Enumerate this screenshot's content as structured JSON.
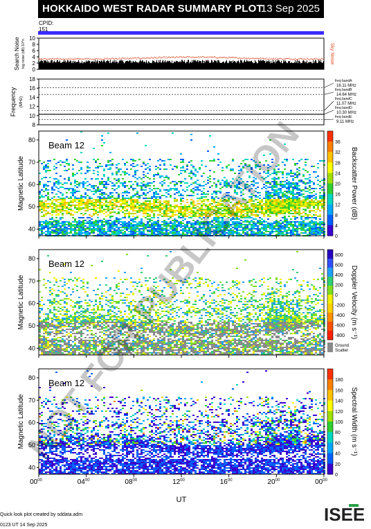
{
  "header": {
    "title": "HOKKAIDO WEST RADAR SUMMARY PLOT",
    "date": "13 Sep 2025"
  },
  "cpid": {
    "label": "CPID:",
    "value": "151"
  },
  "bar_color": "#3a2bff",
  "watermark": "NOT FOR PUBLICATION",
  "footer": {
    "line1": "Quick look plot created by sddata.adm",
    "line2": "0123 UT 14 Sep 2025"
  },
  "logo_text": "ISEE",
  "chart_data": [
    {
      "type": "line",
      "name": "noise",
      "ylabel": "Search Noise",
      "ylabel_sub": "log noise (dB) 10^n",
      "side_label": "Sky Noise",
      "ylim": [
        0,
        10
      ],
      "yticks": [
        0,
        2,
        4,
        6,
        8,
        10
      ],
      "search_noise_level": 2.5,
      "sky_noise_level": 3.3,
      "series_colors": {
        "search": "#000000",
        "sky": "#e0502a"
      }
    },
    {
      "type": "line",
      "name": "frequency",
      "ylabel": "Frequency",
      "ylabel_sub": "(MHz)",
      "ylim": [
        8,
        18
      ],
      "yticks": [
        8,
        10,
        12,
        14,
        16,
        18
      ],
      "bands": [
        {
          "name": "freq bandA",
          "mhz": 16.11,
          "label": "16.11 MHz"
        },
        {
          "name": "freq bandB",
          "mhz": 14.64,
          "label": "14.64 MHz"
        },
        {
          "name": "freq bandC",
          "mhz": 11.07,
          "label": "11.07 MHz"
        },
        {
          "name": "freq bandD",
          "mhz": 10.3,
          "label": "10.30 MHz"
        },
        {
          "name": "freq bandE",
          "mhz": 9.11,
          "label": "9.11 MHz"
        }
      ],
      "operating_mhz": 10.3
    },
    {
      "type": "heatmap",
      "name": "power",
      "beam": "Beam 12",
      "ylabel": "Magnetic Latitude",
      "ylim": [
        37,
        84
      ],
      "yticks": [
        40,
        50,
        60,
        70,
        80
      ],
      "colorbar_label": "Backscatter Power (dB)",
      "colorbar_ticks": [
        "0",
        "4",
        "8",
        "12",
        "16",
        "20",
        "24",
        "28",
        "32",
        "36"
      ],
      "colorbar_colors": [
        "#3a00d0",
        "#0060ff",
        "#00a8ff",
        "#00d8c0",
        "#30d030",
        "#a0e000",
        "#ffff00",
        "#ffc000",
        "#ff8000",
        "#ff3000"
      ]
    },
    {
      "type": "heatmap",
      "name": "velocity",
      "beam": "Beam 12",
      "ylabel": "Magnetic Latitude",
      "ylim": [
        37,
        84
      ],
      "yticks": [
        40,
        50,
        60,
        70,
        80
      ],
      "colorbar_label": "Doppler Velocity (m s⁻¹)",
      "colorbar_ticks": [
        "800",
        "600",
        "400",
        "200",
        "0",
        "-200",
        "-400",
        "-600",
        "-800"
      ],
      "colorbar_colors": [
        "#2800c0",
        "#3050ff",
        "#20a0ff",
        "#30d070",
        "#80e020",
        "#f0f000",
        "#ffd000",
        "#ff9000",
        "#ff5000",
        "#ff2000"
      ],
      "ground_label_1": "Ground",
      "ground_label_2": "Scatter"
    },
    {
      "type": "heatmap",
      "name": "width",
      "beam": "Beam 12",
      "ylabel": "Magnetic Latitude",
      "ylim": [
        37,
        84
      ],
      "yticks": [
        40,
        50,
        60,
        70,
        80
      ],
      "colorbar_label": "Spectral Width (m s⁻¹)",
      "colorbar_ticks": [
        "0",
        "20",
        "40",
        "60",
        "80",
        "100",
        "120",
        "140",
        "160",
        "180"
      ],
      "colorbar_colors": [
        "#3a00d0",
        "#0060ff",
        "#00a8ff",
        "#00d8c0",
        "#30d030",
        "#a0e000",
        "#ffff00",
        "#ffc000",
        "#ff8000",
        "#ff3000"
      ]
    }
  ],
  "xaxis": {
    "label": "UT",
    "ticks": [
      "00",
      "04",
      "08",
      "12",
      "16",
      "20",
      "00"
    ],
    "tick_sup": "00",
    "range_hours": [
      0,
      24
    ]
  }
}
